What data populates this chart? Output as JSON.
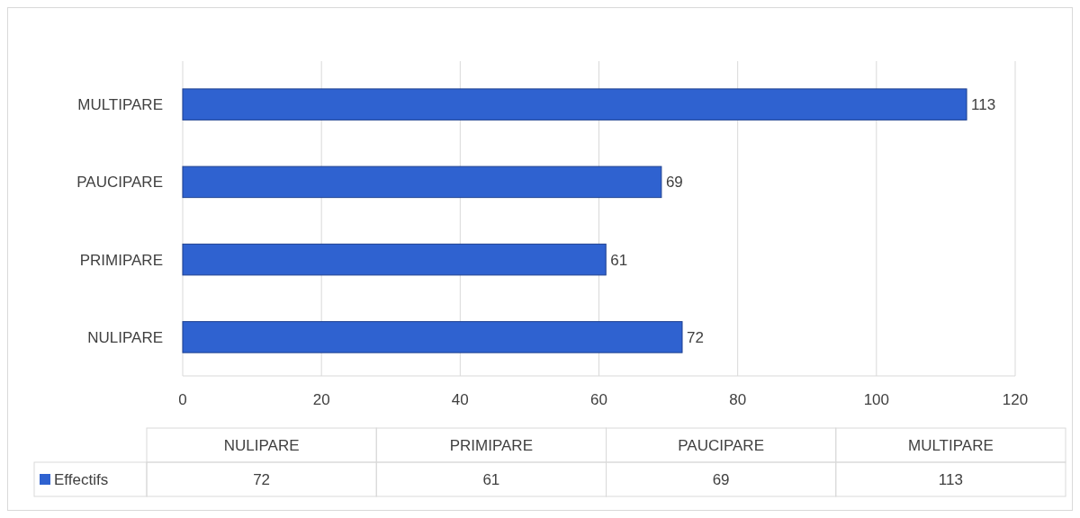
{
  "chart_data": {
    "type": "bar",
    "orientation": "horizontal",
    "categories": [
      "MULTIPARE",
      "PAUCIPARE",
      "PRIMIPARE",
      "NULIPARE"
    ],
    "series": [
      {
        "name": "Effectifs",
        "color": "#2f62d0",
        "values": [
          113,
          69,
          61,
          72
        ]
      }
    ],
    "annotations": [
      "72",
      "61",
      "69",
      "113"
    ],
    "xlim": [
      0,
      120
    ],
    "xticks": [
      0,
      20,
      40,
      60,
      80,
      100,
      120
    ],
    "grid": "x",
    "data_labels": true,
    "legend": "bottom"
  }
}
